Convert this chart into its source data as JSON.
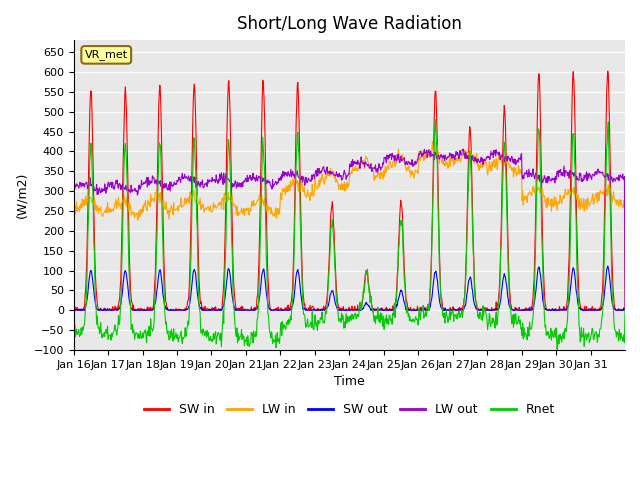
{
  "title": "Short/Long Wave Radiation",
  "xlabel": "Time",
  "ylabel": "(W/m2)",
  "ylim": [
    -100,
    680
  ],
  "yticks": [
    -100,
    -50,
    0,
    50,
    100,
    150,
    200,
    250,
    300,
    350,
    400,
    450,
    500,
    550,
    600,
    650
  ],
  "xtick_labels": [
    "Jan 16",
    "Jan 17",
    "Jan 18",
    "Jan 19",
    "Jan 20",
    "Jan 21",
    "Jan 22",
    "Jan 23",
    "Jan 24",
    "Jan 25",
    "Jan 26",
    "Jan 27",
    "Jan 28",
    "Jan 29",
    "Jan 30",
    "Jan 31"
  ],
  "legend_labels": [
    "SW in",
    "LW in",
    "SW out",
    "LW out",
    "Rnet"
  ],
  "legend_colors": [
    "#ff0000",
    "#ffa500",
    "#0000ff",
    "#9900cc",
    "#00cc00"
  ],
  "bg_color": "#e8e8e8",
  "station_label": "VR_met",
  "n_points": 960,
  "days": 16,
  "sw_peaks": [
    555,
    555,
    565,
    575,
    578,
    575,
    570,
    270,
    100,
    275,
    555,
    460,
    510,
    600,
    600,
    605
  ],
  "lw_base": [
    250,
    245,
    255,
    255,
    250,
    250,
    295,
    315,
    345,
    350,
    375,
    370,
    355,
    275,
    270,
    275
  ],
  "lw_out_base": [
    310,
    310,
    320,
    325,
    325,
    325,
    335,
    345,
    365,
    380,
    390,
    385,
    385,
    335,
    340,
    340
  ]
}
